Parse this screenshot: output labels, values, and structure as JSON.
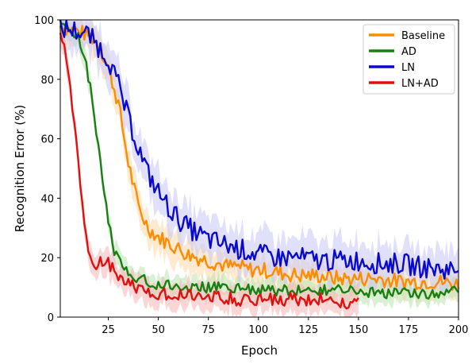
{
  "chart_data": {
    "type": "line",
    "title": "",
    "xlabel": "Epoch",
    "ylabel": "Recognition Error (%)",
    "xlim": [
      1,
      200
    ],
    "ylim": [
      0,
      100
    ],
    "x_ticks": [
      25,
      50,
      75,
      100,
      125,
      150,
      175,
      200
    ],
    "y_ticks": [
      0,
      20,
      40,
      60,
      80,
      100
    ],
    "legend_position": "top-right",
    "grid": false,
    "series": [
      {
        "name": "Baseline",
        "color": "#ff8c00",
        "band_color": "#ffd9a8",
        "spread": 6,
        "x": [
          1,
          5,
          10,
          15,
          20,
          25,
          30,
          35,
          40,
          45,
          50,
          55,
          60,
          65,
          70,
          75,
          80,
          85,
          90,
          95,
          100,
          110,
          120,
          130,
          140,
          150,
          160,
          170,
          180,
          190,
          200
        ],
        "y": [
          98,
          97,
          96,
          95,
          92,
          84,
          72,
          52,
          37,
          30,
          27,
          25,
          23,
          21,
          20,
          19,
          18,
          17,
          17,
          16,
          16,
          15,
          14,
          14,
          13,
          13,
          13,
          12,
          12,
          12,
          11
        ]
      },
      {
        "name": "AD",
        "color": "#1a7f12",
        "band_color": "#b9e3b3",
        "spread": 4,
        "x": [
          1,
          5,
          10,
          13,
          16,
          20,
          25,
          28,
          32,
          36,
          40,
          45,
          50,
          55,
          60,
          70,
          80,
          90,
          100,
          110,
          120,
          130,
          140,
          150,
          160,
          170,
          180,
          190,
          200
        ],
        "y": [
          98,
          97,
          94,
          88,
          77,
          58,
          32,
          22,
          17,
          15,
          13,
          12,
          11,
          11,
          10,
          10,
          10,
          10,
          9,
          9,
          9,
          9,
          9,
          9,
          8,
          8,
          8,
          8,
          9
        ]
      },
      {
        "name": "LN",
        "color": "#0a0acd",
        "band_color": "#c6c6f7",
        "spread": 8,
        "x": [
          1,
          5,
          10,
          15,
          20,
          25,
          30,
          35,
          40,
          45,
          50,
          55,
          60,
          65,
          70,
          75,
          80,
          85,
          90,
          95,
          100,
          110,
          120,
          130,
          140,
          150,
          160,
          170,
          180,
          190,
          200
        ],
        "y": [
          97,
          97,
          96,
          95,
          91,
          87,
          78,
          67,
          57,
          48,
          42,
          37,
          33,
          30,
          28,
          26,
          25,
          24,
          23,
          22,
          21,
          20,
          20,
          19,
          19,
          19,
          18,
          18,
          17,
          16,
          16
        ]
      },
      {
        "name": "LN+AD",
        "color": "#e01010",
        "band_color": "#f7b5b5",
        "spread": 5,
        "x": [
          1,
          3,
          5,
          7,
          9,
          11,
          13,
          15,
          18,
          21,
          24,
          28,
          32,
          36,
          40,
          50,
          60,
          70,
          80,
          90,
          100,
          110,
          120,
          130,
          140,
          150
        ],
        "y": [
          97,
          92,
          83,
          72,
          58,
          45,
          30,
          22,
          17,
          18,
          19,
          15,
          13,
          11,
          9,
          8,
          8,
          7,
          7,
          6,
          6,
          6,
          6,
          6,
          5,
          5
        ]
      }
    ]
  }
}
